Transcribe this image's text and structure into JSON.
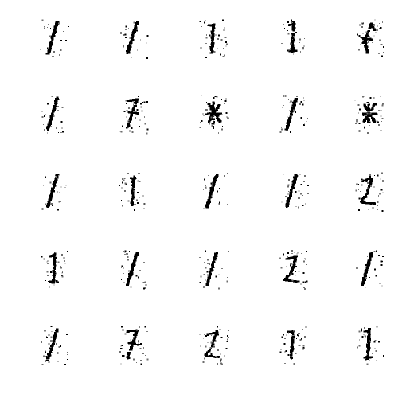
{
  "figure": {
    "rows": 5,
    "cols": 5,
    "background": "#ffffff",
    "ink": "#000000",
    "samples": [
      {
        "shape": "slash",
        "noise": 0.25
      },
      {
        "shape": "slash",
        "noise": 0.25
      },
      {
        "shape": "thin",
        "noise": 0.45
      },
      {
        "shape": "upright",
        "noise": 0.35
      },
      {
        "shape": "blob",
        "noise": 0.55
      },
      {
        "shape": "slash",
        "noise": 0.2
      },
      {
        "shape": "seven",
        "noise": 0.5
      },
      {
        "shape": "star",
        "noise": 0.7
      },
      {
        "shape": "slash",
        "noise": 0.35
      },
      {
        "shape": "star",
        "noise": 0.75
      },
      {
        "shape": "slash",
        "noise": 0.25
      },
      {
        "shape": "thin",
        "noise": 0.5
      },
      {
        "shape": "slash",
        "noise": 0.25
      },
      {
        "shape": "slash",
        "noise": 0.35
      },
      {
        "shape": "two",
        "noise": 0.7
      },
      {
        "shape": "upright",
        "noise": 0.4
      },
      {
        "shape": "slash",
        "noise": 0.35
      },
      {
        "shape": "slash",
        "noise": 0.25
      },
      {
        "shape": "two",
        "noise": 0.65
      },
      {
        "shape": "slash",
        "noise": 0.2
      },
      {
        "shape": "slash",
        "noise": 0.45
      },
      {
        "shape": "seven",
        "noise": 0.5
      },
      {
        "shape": "two",
        "noise": 0.75
      },
      {
        "shape": "thin",
        "noise": 0.55
      },
      {
        "shape": "upright",
        "noise": 0.35
      }
    ]
  }
}
